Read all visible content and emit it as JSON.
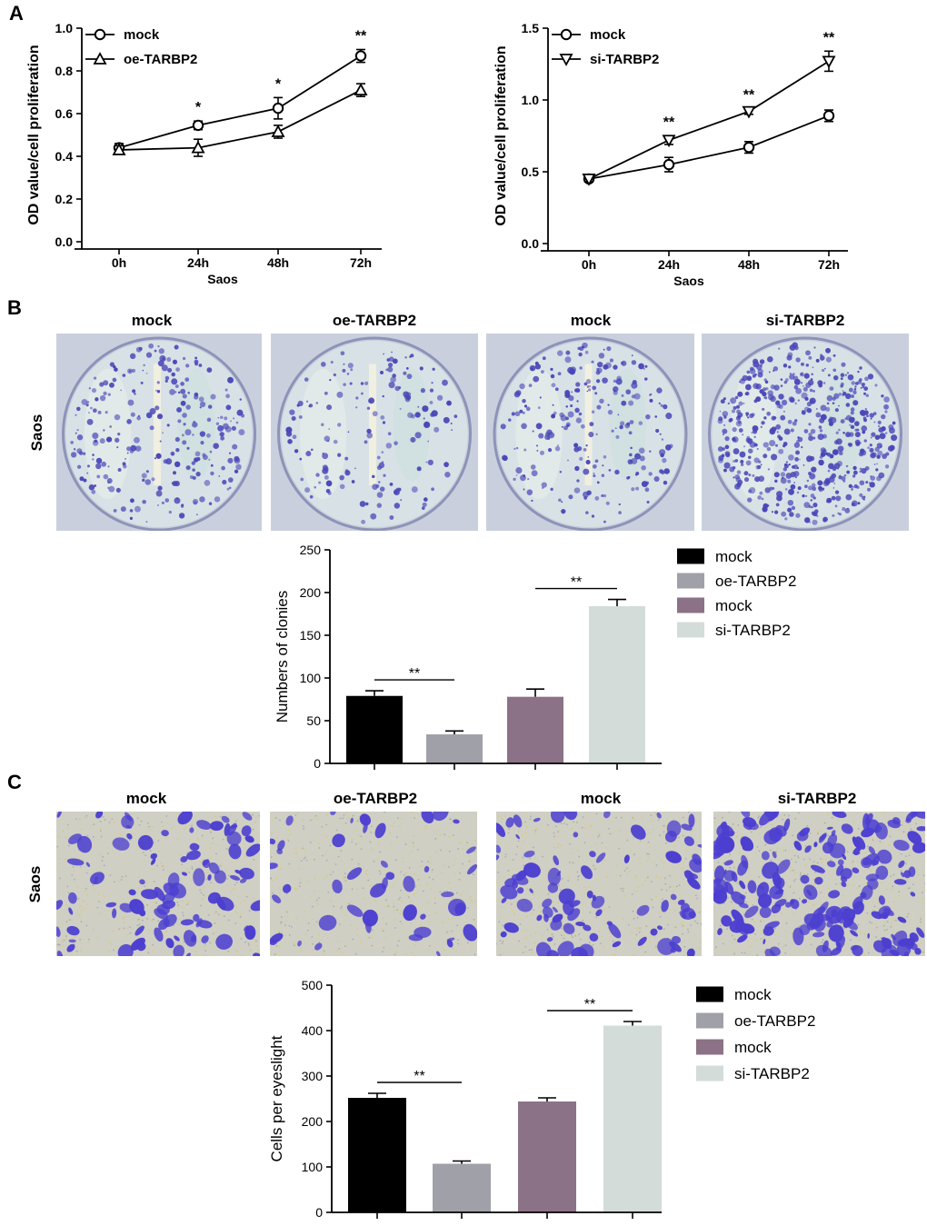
{
  "panels": {
    "A": {
      "letter": "A"
    },
    "B": {
      "letter": "B",
      "row_label": "Saos",
      "photo_labels": [
        "mock",
        "oe-TARBP2",
        "mock",
        "si-TARBP2"
      ]
    },
    "C": {
      "letter": "C",
      "row_label": "Saos",
      "photo_labels": [
        "mock",
        "oe-TARBP2",
        "mock",
        "si-TARBP2"
      ]
    }
  },
  "colors": {
    "mock1": "#000000",
    "oe": "#a0a0a8",
    "mock2": "#8c7286",
    "si": "#d3dcd8",
    "colony_stain": "#4a47b8",
    "cell_stain": "#4c3fd0"
  },
  "chart_data": [
    {
      "id": "A-left",
      "type": "line",
      "x": [
        "0h",
        "24h",
        "48h",
        "72h"
      ],
      "xlabel": "Saos",
      "ylabel": "OD value/cell proliferation",
      "ylim": [
        0,
        1.0
      ],
      "yticks": [
        "0.0",
        "0.2",
        "0.4",
        "0.6",
        "0.8",
        "1.0"
      ],
      "legend_position": "top-left",
      "series": [
        {
          "name": "mock",
          "marker": "circle",
          "values": [
            0.44,
            0.545,
            0.625,
            0.87
          ],
          "errors": [
            0.02,
            0.02,
            0.05,
            0.03
          ]
        },
        {
          "name": "oe-TARBP2",
          "marker": "triangle-up",
          "values": [
            0.43,
            0.44,
            0.515,
            0.71
          ],
          "errors": [
            0.02,
            0.04,
            0.03,
            0.03
          ]
        }
      ],
      "annotations": [
        "",
        "*",
        "*",
        "**"
      ]
    },
    {
      "id": "A-right",
      "type": "line",
      "x": [
        "0h",
        "24h",
        "48h",
        "72h"
      ],
      "xlabel": "Saos",
      "ylabel": "OD value/cell proliferation",
      "ylim": [
        0,
        1.5
      ],
      "yticks": [
        "0.0",
        "0.5",
        "1.0",
        "1.5"
      ],
      "legend_position": "top-left",
      "series": [
        {
          "name": "mock",
          "marker": "circle",
          "values": [
            0.45,
            0.55,
            0.67,
            0.89
          ],
          "errors": [
            0.02,
            0.05,
            0.04,
            0.04
          ]
        },
        {
          "name": "si-TARBP2",
          "marker": "triangle-down",
          "values": [
            0.45,
            0.72,
            0.92,
            1.27
          ],
          "errors": [
            0.02,
            0.03,
            0.02,
            0.07
          ]
        }
      ],
      "annotations": [
        "",
        "**",
        "**",
        "**"
      ]
    },
    {
      "id": "B-bar",
      "type": "bar",
      "categories": [
        "mock",
        "oe-TARBP2",
        "mock",
        "si-TARBP2"
      ],
      "values": [
        79,
        34,
        78,
        184
      ],
      "errors": [
        6,
        4,
        9,
        8
      ],
      "ylabel": "Numbers of clonies",
      "ylim": [
        0,
        250
      ],
      "yticks": [
        "0",
        "50",
        "100",
        "150",
        "200",
        "250"
      ],
      "legend_position": "right",
      "significance": [
        {
          "pair": [
            0,
            1
          ],
          "label": "**"
        },
        {
          "pair": [
            2,
            3
          ],
          "label": "**"
        }
      ]
    },
    {
      "id": "C-bar",
      "type": "bar",
      "categories": [
        "mock",
        "oe-TARBP2",
        "mock",
        "si-TARBP2"
      ],
      "values": [
        252,
        107,
        244,
        411
      ],
      "errors": [
        10,
        6,
        8,
        9
      ],
      "ylabel": "Cells per eyeslight",
      "ylim": [
        0,
        500
      ],
      "yticks": [
        "0",
        "100",
        "200",
        "300",
        "400",
        "500"
      ],
      "legend_position": "right",
      "significance": [
        {
          "pair": [
            0,
            1
          ],
          "label": "**"
        },
        {
          "pair": [
            2,
            3
          ],
          "label": "**"
        }
      ]
    }
  ]
}
